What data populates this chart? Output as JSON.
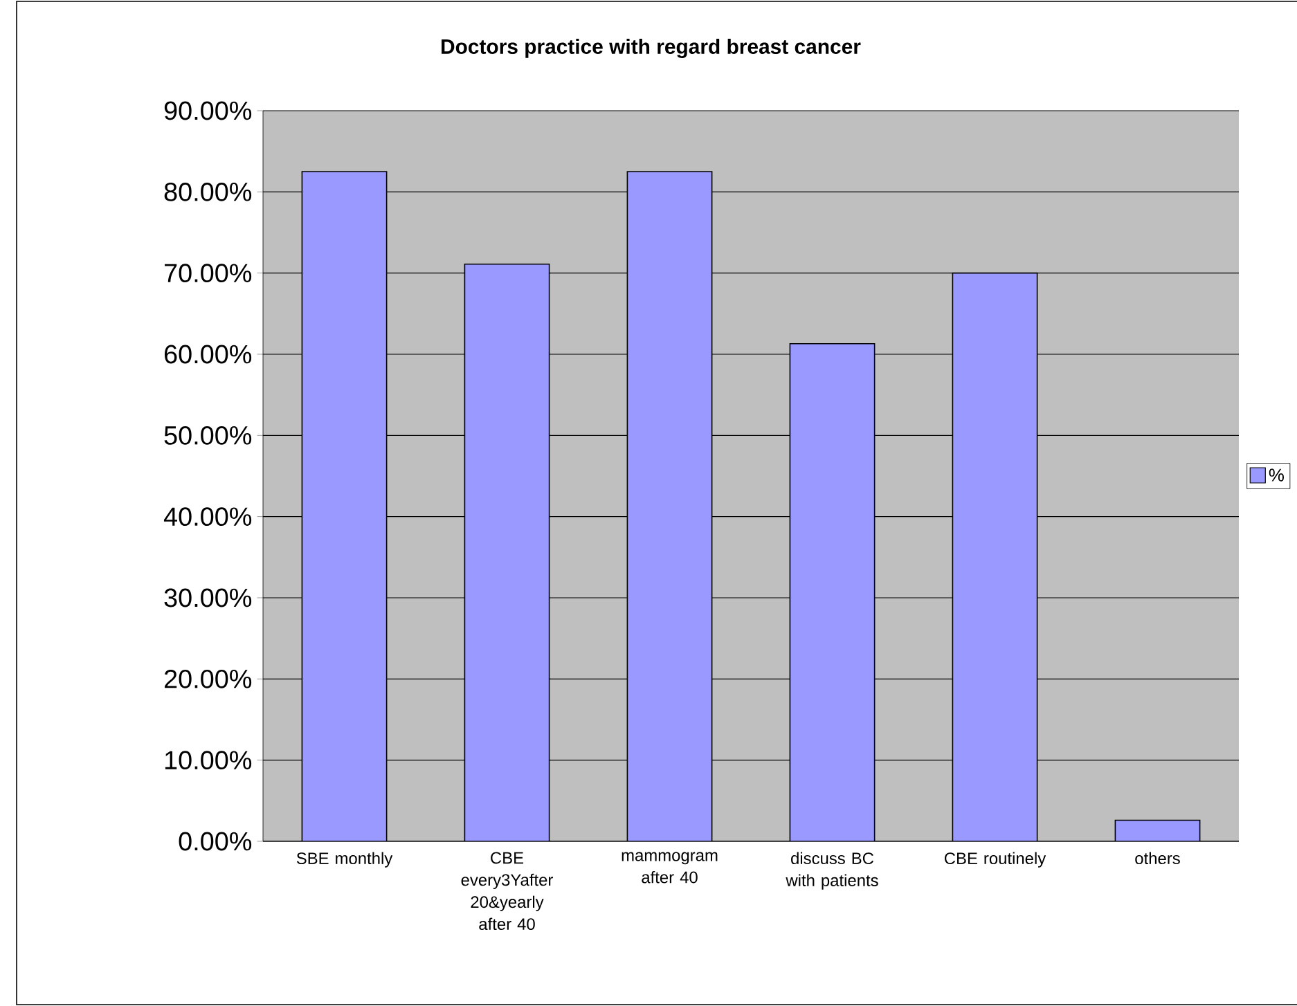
{
  "chart_data": {
    "type": "bar",
    "title": "Doctors practice with regard breast cancer",
    "categories": [
      "SBE monthly",
      "CBE every3Yafter 20&yearly after 40",
      "mammogram after 40",
      "discuss BC with patients",
      "CBE routinely",
      "others"
    ],
    "series": [
      {
        "name": "%",
        "color": "#9999ff",
        "values": [
          82.5,
          71.1,
          82.5,
          61.3,
          70,
          2.6
        ]
      }
    ],
    "ylim": [
      0,
      90
    ],
    "yticks": [
      {
        "value": 0,
        "label": "0.00%"
      },
      {
        "value": 10,
        "label": "10.00%"
      },
      {
        "value": 20,
        "label": "20.00%"
      },
      {
        "value": 30,
        "label": "30.00%"
      },
      {
        "value": 40,
        "label": "40.00%"
      },
      {
        "value": 50,
        "label": "50.00%"
      },
      {
        "value": 60,
        "label": "60.00%"
      },
      {
        "value": 70,
        "label": "70.00%"
      },
      {
        "value": 80,
        "label": "80.00%"
      },
      {
        "value": 90,
        "label": "90.00%"
      }
    ],
    "grid": "y",
    "legend": "right"
  }
}
